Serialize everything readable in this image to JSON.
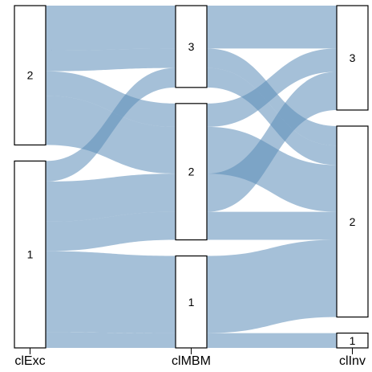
{
  "chart_data": {
    "type": "alluvial",
    "axes": [
      "clExc",
      "clMBM",
      "clInv"
    ],
    "nodes": {
      "clExc": [
        {
          "label": "2",
          "value": 170
        },
        {
          "label": "1",
          "value": 228
        }
      ],
      "clMBM": [
        {
          "label": "3",
          "value": 105
        },
        {
          "label": "2",
          "value": 175
        },
        {
          "label": "1",
          "value": 118
        }
      ],
      "clInv": [
        {
          "label": "3",
          "value": 134
        },
        {
          "label": "2",
          "value": 245
        },
        {
          "label": "1",
          "value": 19
        }
      ]
    },
    "flows": [
      {
        "path": [
          "2",
          "3",
          "3"
        ],
        "value": 55
      },
      {
        "path": [
          "2",
          "3",
          "2"
        ],
        "value": 25
      },
      {
        "path": [
          "2",
          "2",
          "3"
        ],
        "value": 30
      },
      {
        "path": [
          "2",
          "2",
          "2"
        ],
        "value": 60
      },
      {
        "path": [
          "1",
          "3",
          "2"
        ],
        "value": 25
      },
      {
        "path": [
          "1",
          "2",
          "3"
        ],
        "value": 49
      },
      {
        "path": [
          "1",
          "2",
          "2"
        ],
        "value": 36
      },
      {
        "path": [
          "1",
          "1",
          "2"
        ],
        "value": 99
      },
      {
        "path": [
          "1",
          "1",
          "1"
        ],
        "value": 19
      }
    ],
    "color": "#5b8db8"
  }
}
